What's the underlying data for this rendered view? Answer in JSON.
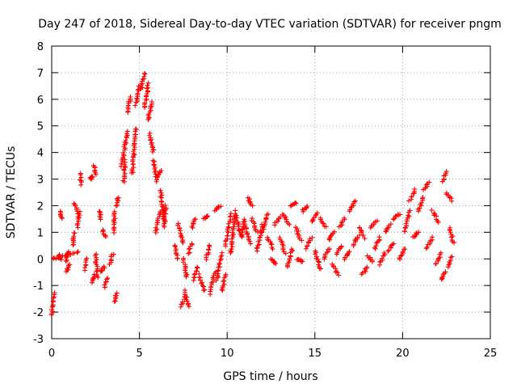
{
  "chart_data": {
    "type": "scatter",
    "title": "Day 247 of 2018, Sidereal Day-to-day VTEC variation (SDTVAR) for receiver pngm",
    "xlabel": "GPS time / hours",
    "ylabel": "SDTVAR / TECUs",
    "xlim": [
      0,
      25
    ],
    "ylim": [
      -3,
      8
    ],
    "xticks": [
      "0",
      "5",
      "10",
      "15",
      "20",
      "25"
    ],
    "yticks": [
      "-3",
      "-2",
      "-1",
      "0",
      "1",
      "2",
      "3",
      "4",
      "5",
      "6",
      "7",
      "8"
    ],
    "grid": true,
    "marker": "+",
    "color": "#ff0000",
    "series": [
      {
        "name": "SDTVAR",
        "segments": [
          [
            0.05,
            0.0,
            1.5,
            0.25,
            1.9
          ],
          [
            0.0,
            -2.1,
            0.15,
            -1.3
          ],
          [
            0.5,
            1.8,
            0.6,
            1.5
          ],
          [
            0.4,
            0.15,
            0.5,
            0.0
          ],
          [
            0.8,
            -0.1,
            0.95,
            0.3
          ],
          [
            0.85,
            -0.5,
            1.0,
            -0.2
          ],
          [
            1.2,
            0.5,
            1.3,
            1.0
          ],
          [
            1.3,
            2.1,
            1.45,
            1.7
          ],
          [
            1.45,
            1.2,
            1.6,
            1.8
          ],
          [
            1.6,
            3.2,
            1.7,
            2.8
          ],
          [
            1.9,
            -0.4,
            2.0,
            0.0
          ],
          [
            2.2,
            3.0,
            2.3,
            3.1
          ],
          [
            2.4,
            3.5,
            2.5,
            3.2
          ],
          [
            2.3,
            -0.9,
            2.45,
            -0.6
          ],
          [
            2.5,
            0.2,
            2.6,
            -0.7
          ],
          [
            2.7,
            1.8,
            2.8,
            1.5
          ],
          [
            2.8,
            -0.5,
            3.0,
            -0.3
          ],
          [
            2.9,
            1.1,
            3.05,
            0.8
          ],
          [
            3.0,
            -1.1,
            3.15,
            -0.7
          ],
          [
            3.3,
            -0.2,
            3.5,
            0.2
          ],
          [
            3.5,
            1.0,
            3.6,
            1.8
          ],
          [
            3.6,
            -1.6,
            3.7,
            -1.3
          ],
          [
            3.7,
            2.0,
            3.8,
            2.3
          ],
          [
            4.0,
            3.5,
            4.3,
            4.8
          ],
          [
            4.1,
            2.9,
            4.2,
            3.7
          ],
          [
            4.3,
            5.5,
            4.5,
            6.1
          ],
          [
            4.6,
            3.2,
            4.8,
            4.9
          ],
          [
            4.8,
            5.8,
            5.0,
            6.5
          ],
          [
            5.1,
            6.4,
            5.3,
            7.0
          ],
          [
            5.3,
            5.7,
            5.5,
            6.6
          ],
          [
            5.5,
            5.2,
            5.7,
            5.9
          ],
          [
            5.6,
            4.7,
            5.8,
            4.0
          ],
          [
            5.8,
            3.7,
            6.0,
            2.9
          ],
          [
            6.0,
            3.1,
            6.2,
            3.3
          ],
          [
            5.9,
            1.0,
            6.2,
            1.8
          ],
          [
            6.2,
            2.6,
            6.4,
            1.4
          ],
          [
            6.4,
            1.2,
            6.5,
            2.0
          ],
          [
            7.0,
            0.5,
            7.2,
            0.0
          ],
          [
            7.2,
            1.3,
            7.5,
            0.6
          ],
          [
            7.4,
            -1.8,
            7.6,
            -1.4
          ],
          [
            7.5,
            0.0,
            7.7,
            -0.7
          ],
          [
            7.6,
            -1.2,
            7.8,
            -1.8
          ],
          [
            7.8,
            0.2,
            8.0,
            0.6
          ],
          [
            8.0,
            1.2,
            8.2,
            1.5
          ],
          [
            8.1,
            -0.8,
            8.3,
            -0.3
          ],
          [
            8.4,
            -0.6,
            8.7,
            -1.2
          ],
          [
            8.7,
            1.5,
            8.9,
            1.6
          ],
          [
            8.8,
            0.0,
            9.0,
            0.5
          ],
          [
            9.0,
            -1.3,
            9.3,
            -0.5
          ],
          [
            9.3,
            1.8,
            9.6,
            2.0
          ],
          [
            9.4,
            -0.8,
            9.7,
            0.2
          ],
          [
            9.7,
            -1.2,
            9.9,
            -0.6
          ],
          [
            9.9,
            0.5,
            10.2,
            1.7
          ],
          [
            10.2,
            0.2,
            10.5,
            1.8
          ],
          [
            10.5,
            1.6,
            10.8,
            0.9
          ],
          [
            10.8,
            0.8,
            11.0,
            1.5
          ],
          [
            11.0,
            1.3,
            11.3,
            0.6
          ],
          [
            11.2,
            2.3,
            11.4,
            2.0
          ],
          [
            11.4,
            1.5,
            11.7,
            1.0
          ],
          [
            11.7,
            0.3,
            12.0,
            1.3
          ],
          [
            12.0,
            1.0,
            12.3,
            1.7
          ],
          [
            12.3,
            0.8,
            12.6,
            0.4
          ],
          [
            12.5,
            0.0,
            12.8,
            -0.2
          ],
          [
            12.7,
            1.3,
            13.0,
            1.6
          ],
          [
            13.0,
            0.8,
            13.3,
            0.2
          ],
          [
            13.2,
            1.7,
            13.5,
            1.3
          ],
          [
            13.4,
            -0.3,
            13.7,
            0.4
          ],
          [
            13.6,
            2.0,
            13.9,
            2.1
          ],
          [
            13.9,
            1.2,
            14.2,
            0.7
          ],
          [
            14.0,
            0.0,
            14.3,
            -0.1
          ],
          [
            14.3,
            1.8,
            14.6,
            2.0
          ],
          [
            14.5,
            0.4,
            14.8,
            0.8
          ],
          [
            14.8,
            1.4,
            15.1,
            1.7
          ],
          [
            15.0,
            0.3,
            15.3,
            -0.4
          ],
          [
            15.3,
            1.5,
            15.6,
            1.2
          ],
          [
            15.5,
            0.0,
            15.8,
            0.4
          ],
          [
            15.8,
            0.7,
            16.1,
            1.0
          ],
          [
            16.0,
            -0.2,
            16.3,
            -0.6
          ],
          [
            16.2,
            0.2,
            16.5,
            0.5
          ],
          [
            16.4,
            1.2,
            16.7,
            1.5
          ],
          [
            16.7,
            0.0,
            17.0,
            0.3
          ],
          [
            17.0,
            1.8,
            17.3,
            2.2
          ],
          [
            17.2,
            0.5,
            17.5,
            0.9
          ],
          [
            17.5,
            1.2,
            17.8,
            0.8
          ],
          [
            17.7,
            -0.6,
            18.0,
            -0.3
          ],
          [
            18.0,
            0.1,
            18.3,
            -0.1
          ],
          [
            18.2,
            1.2,
            18.5,
            1.4
          ],
          [
            18.4,
            0.4,
            18.7,
            0.8
          ],
          [
            18.7,
            -0.2,
            19.0,
            0.2
          ],
          [
            19.0,
            1.0,
            19.3,
            1.3
          ],
          [
            19.2,
            0.3,
            19.5,
            0.6
          ],
          [
            19.5,
            1.5,
            19.8,
            1.7
          ],
          [
            19.8,
            0.0,
            20.1,
            0.4
          ],
          [
            20.1,
            1.0,
            20.4,
            1.8
          ],
          [
            20.4,
            2.2,
            20.7,
            2.6
          ],
          [
            20.6,
            0.8,
            20.9,
            1.0
          ],
          [
            20.9,
            1.8,
            21.2,
            2.3
          ],
          [
            21.2,
            2.6,
            21.5,
            2.9
          ],
          [
            21.4,
            0.4,
            21.7,
            0.8
          ],
          [
            21.7,
            1.8,
            22.0,
            1.4
          ],
          [
            21.9,
            -0.2,
            22.2,
            0.2
          ],
          [
            22.2,
            -0.8,
            22.4,
            -0.5
          ],
          [
            22.3,
            2.9,
            22.5,
            3.3
          ],
          [
            22.5,
            2.5,
            22.8,
            2.2
          ],
          [
            22.6,
            -0.3,
            22.8,
            0.1
          ],
          [
            22.7,
            1.2,
            22.9,
            0.6
          ]
        ]
      }
    ]
  }
}
